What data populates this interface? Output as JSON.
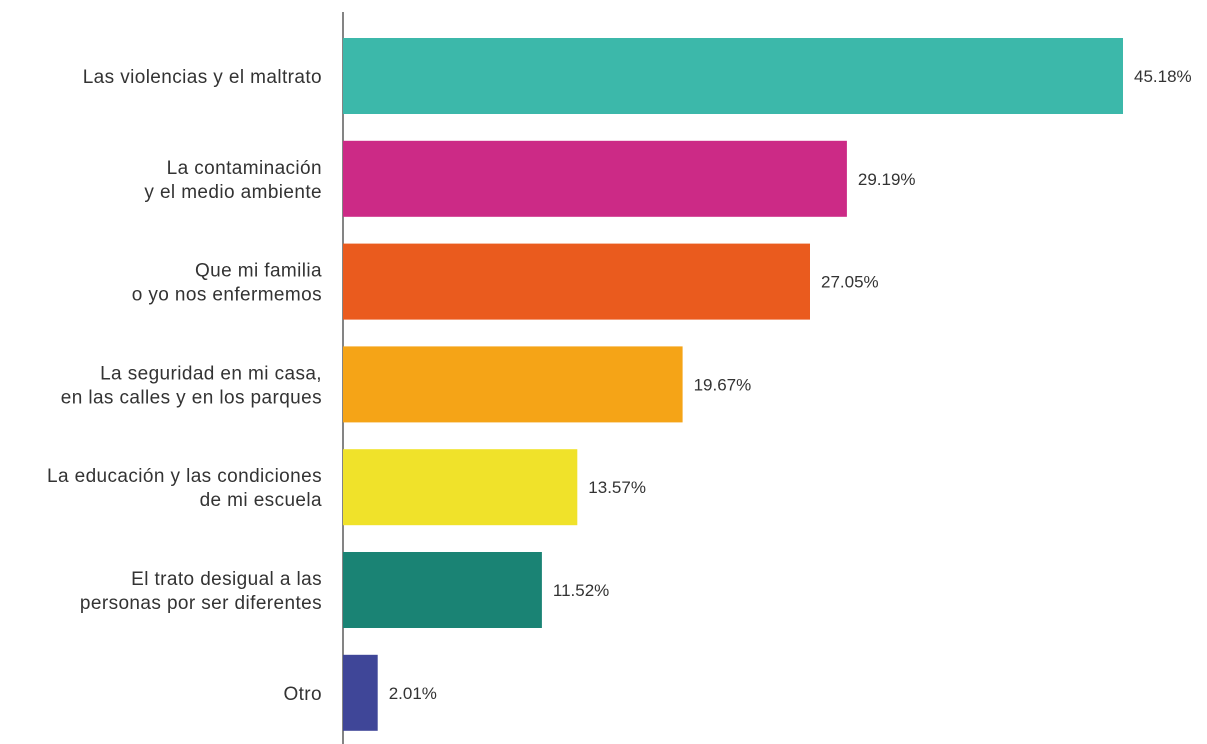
{
  "chart_data": {
    "type": "bar",
    "orientation": "horizontal",
    "categories": [
      [
        "Las violencias y el maltrato"
      ],
      [
        "La contaminación",
        "y el medio ambiente"
      ],
      [
        "Que mi familia",
        "o yo nos enfermemos"
      ],
      [
        "La seguridad en mi casa,",
        "en las calles y en los parques"
      ],
      [
        "La educación y las condiciones",
        "de mi escuela"
      ],
      [
        "El trato desigual a las",
        "personas por ser diferentes"
      ],
      [
        "Otro"
      ]
    ],
    "values": [
      45.18,
      29.19,
      27.05,
      19.67,
      13.57,
      11.52,
      2.01
    ],
    "value_labels": [
      "45.18%",
      "29.19%",
      "27.05%",
      "19.67%",
      "13.57%",
      "11.52%",
      "2.01%"
    ],
    "colors": [
      "#3cb8aa",
      "#cc2a86",
      "#ea5b1e",
      "#f5a417",
      "#f0e22a",
      "#1a8374",
      "#3f4698"
    ],
    "xlim": [
      0,
      45.18
    ],
    "grid": false,
    "legend": "none",
    "title": "",
    "xlabel": "",
    "ylabel": ""
  }
}
